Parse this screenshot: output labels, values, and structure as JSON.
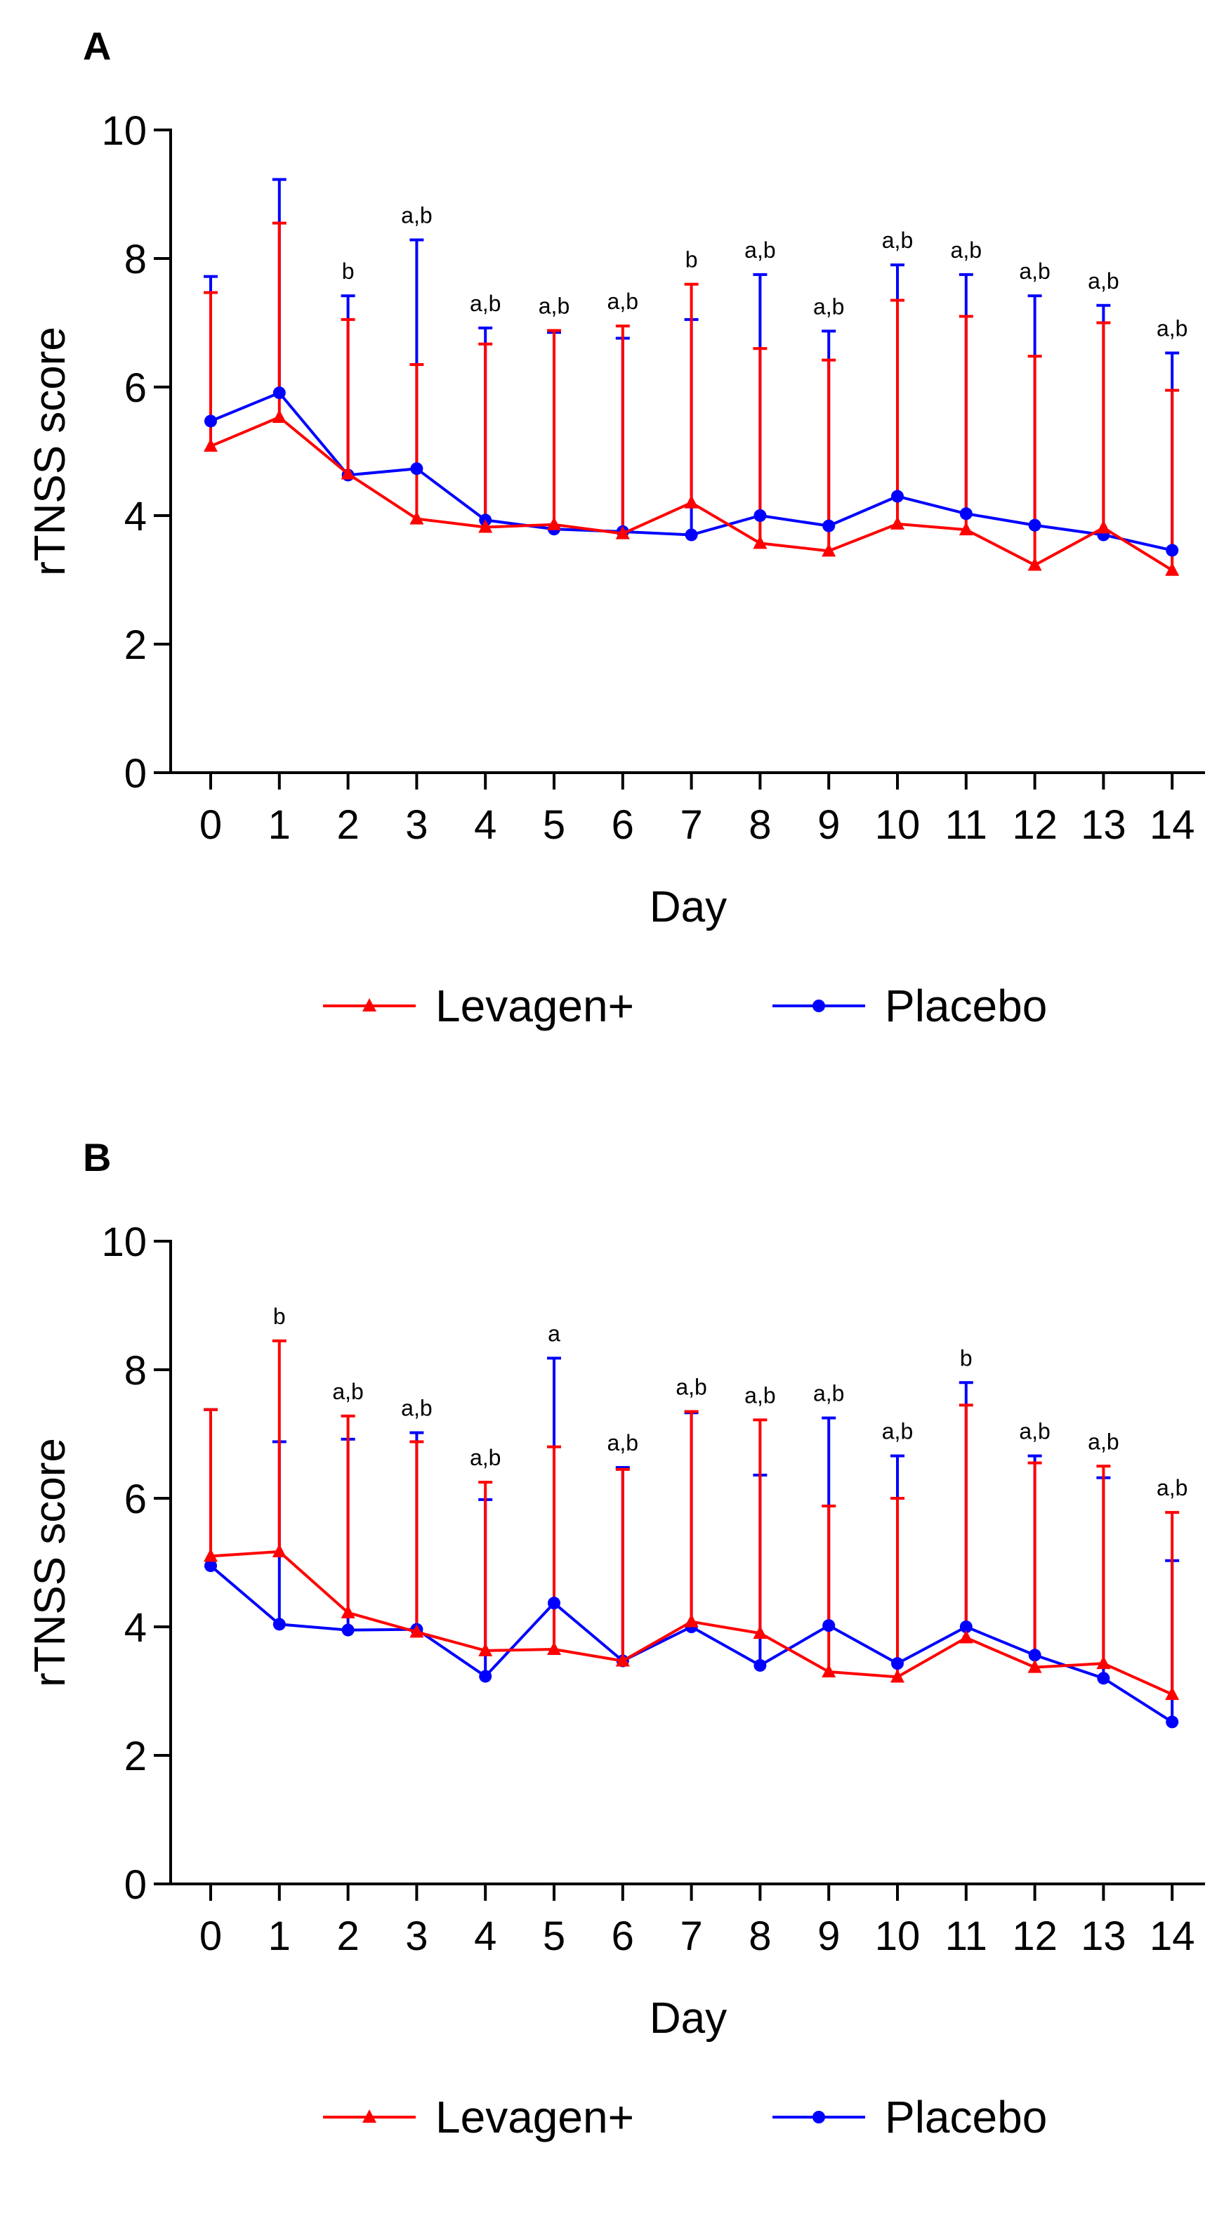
{
  "chart_data": [
    {
      "type": "line",
      "panel_label": "A",
      "xlabel": "Day",
      "ylabel": "rTNSS score",
      "ylim": [
        0,
        10
      ],
      "yticks": [
        0,
        2,
        4,
        6,
        8,
        10
      ],
      "x": [
        0,
        1,
        2,
        3,
        4,
        5,
        6,
        7,
        8,
        9,
        10,
        11,
        12,
        13,
        14
      ],
      "series": [
        {
          "name": "Levagen+",
          "color": "#ff0000",
          "marker": "triangle",
          "values": [
            5.08,
            5.53,
            4.65,
            3.95,
            3.82,
            3.86,
            3.72,
            4.2,
            3.57,
            3.45,
            3.87,
            3.78,
            3.23,
            3.81,
            3.15
          ],
          "error_upper": [
            7.47,
            8.55,
            7.05,
            6.35,
            6.67,
            6.88,
            6.95,
            7.6,
            6.6,
            6.42,
            7.35,
            7.1,
            6.48,
            7.0,
            5.95
          ]
        },
        {
          "name": "Placebo",
          "color": "#0000ff",
          "marker": "circle",
          "values": [
            5.47,
            5.91,
            4.63,
            4.73,
            3.93,
            3.79,
            3.75,
            3.7,
            4.0,
            3.84,
            4.3,
            4.03,
            3.85,
            3.7,
            3.46
          ],
          "error_upper": [
            7.72,
            9.23,
            7.42,
            8.29,
            6.92,
            6.85,
            6.76,
            7.05,
            7.75,
            6.87,
            7.9,
            7.75,
            7.42,
            7.27,
            6.53
          ]
        }
      ],
      "annotations": [
        "",
        "",
        "b",
        "a,b",
        "a,b",
        "a,b",
        "a,b",
        "b",
        "a,b",
        "a,b",
        "a,b",
        "a,b",
        "a,b",
        "a,b",
        "a,b"
      ],
      "legend": [
        "Levagen+",
        "Placebo"
      ]
    },
    {
      "type": "line",
      "panel_label": "B",
      "xlabel": "Day",
      "ylabel": "rTNSS score",
      "ylim": [
        0,
        10
      ],
      "yticks": [
        0,
        2,
        4,
        6,
        8,
        10
      ],
      "x": [
        0,
        1,
        2,
        3,
        4,
        5,
        6,
        7,
        8,
        9,
        10,
        11,
        12,
        13,
        14
      ],
      "series": [
        {
          "name": "Levagen+",
          "color": "#ff0000",
          "marker": "triangle",
          "values": [
            5.1,
            5.17,
            4.22,
            3.92,
            3.63,
            3.65,
            3.47,
            4.08,
            3.9,
            3.3,
            3.22,
            3.83,
            3.37,
            3.43,
            2.95
          ],
          "error_upper": [
            7.38,
            8.45,
            7.28,
            6.88,
            6.25,
            6.8,
            6.45,
            7.35,
            7.22,
            5.88,
            6.0,
            7.45,
            6.55,
            6.5,
            5.78
          ]
        },
        {
          "name": "Placebo",
          "color": "#0000ff",
          "marker": "circle",
          "values": [
            4.95,
            4.04,
            3.95,
            3.96,
            3.23,
            4.37,
            3.47,
            4.0,
            3.4,
            4.02,
            3.43,
            4.0,
            3.56,
            3.2,
            2.52
          ],
          "error_upper": [
            7.38,
            6.88,
            6.92,
            7.02,
            5.98,
            8.18,
            6.48,
            7.33,
            6.36,
            7.25,
            6.66,
            7.8,
            6.66,
            6.32,
            5.03
          ]
        }
      ],
      "annotations": [
        "",
        "b",
        "a,b",
        "a,b",
        "a,b",
        "a",
        "a,b",
        "a,b",
        "a,b",
        "a,b",
        "a,b",
        "b",
        "a,b",
        "a,b",
        "a,b"
      ],
      "legend": [
        "Levagen+",
        "Placebo"
      ]
    }
  ]
}
